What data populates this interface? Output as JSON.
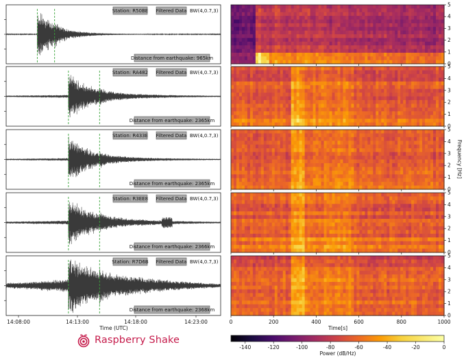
{
  "chart_data": {
    "type": "seismogram-spectrogram",
    "title": "",
    "waveform_x_ticks": [
      "14:08:00",
      "14:13:00",
      "14:18:00",
      "14:23:00"
    ],
    "waveform_x_label": "Time (UTC)",
    "spectrogram_x_ticks": [
      0,
      200,
      400,
      600,
      800,
      1000
    ],
    "spectrogram_x_label": "Time[s]",
    "spectrogram_x_range": [
      0,
      1000
    ],
    "spectrogram_y_ticks": [
      0,
      1,
      2,
      3,
      4,
      5
    ],
    "spectrogram_y_label": "Frequency [Hz]",
    "spectrogram_y_range": [
      0,
      5
    ],
    "colorbar_ticks": [
      -140,
      -120,
      -100,
      -80,
      -60,
      -40,
      -20,
      0
    ],
    "colorbar_label": "Power (dB/Hz)",
    "colorbar_range": [
      -150,
      0
    ],
    "panels": [
      {
        "station": "Station: R50BE",
        "filter": "Filtered Data",
        "bw": "BW(4,0.7,3)",
        "distance": "Distance from earthquake: 965km",
        "p_arrival_s": 100,
        "s_arrival_s": 200,
        "envelope_amplitude": 0.95,
        "tail_decay_s": 110,
        "background_level": 0.0,
        "spectrogram_onset_s": 120
      },
      {
        "station": "Station: RA482",
        "filter": "Filtered Data",
        "bw": "BW(4,0.7,3)",
        "distance": "Distance from earthquake: 2365km",
        "p_arrival_s": 280,
        "s_arrival_s": 460,
        "envelope_amplitude": 0.85,
        "tail_decay_s": 130,
        "background_level": 0.08,
        "spectrogram_onset_s": 280
      },
      {
        "station": "Station: R433E",
        "filter": "Filtered Data",
        "bw": "BW(4,0.7,3)",
        "distance": "Distance from earthquake: 2365km",
        "p_arrival_s": 280,
        "s_arrival_s": 460,
        "envelope_amplitude": 0.9,
        "tail_decay_s": 120,
        "background_level": 0.07,
        "spectrogram_onset_s": 280
      },
      {
        "station": "Station: R3EE8",
        "filter": "Filtered Data",
        "bw": "BW(4,0.7,3)",
        "distance": "Distance from earthquake: 2366km",
        "p_arrival_s": 280,
        "s_arrival_s": 460,
        "envelope_amplitude": 0.85,
        "tail_decay_s": 140,
        "background_level": 0.12,
        "spectrogram_onset_s": 280
      },
      {
        "station": "Station: R7D6B",
        "filter": "Filtered Data",
        "bw": "BW(4,0.7,3)",
        "distance": "Distance from earthquake: 2368km",
        "p_arrival_s": 280,
        "s_arrival_s": 460,
        "envelope_amplitude": 0.9,
        "tail_decay_s": 160,
        "background_level": 0.45,
        "spectrogram_onset_s": 280
      }
    ]
  },
  "branding": {
    "name": "Raspberry Shake",
    "logo_icon": "raspberry-shake-logo-icon",
    "brand_color": "#c51a4a"
  },
  "colors": {
    "trace": "#3a3a3a",
    "arrival_marker": "#3aa33a",
    "tag_fill": "#a9a9a9"
  }
}
